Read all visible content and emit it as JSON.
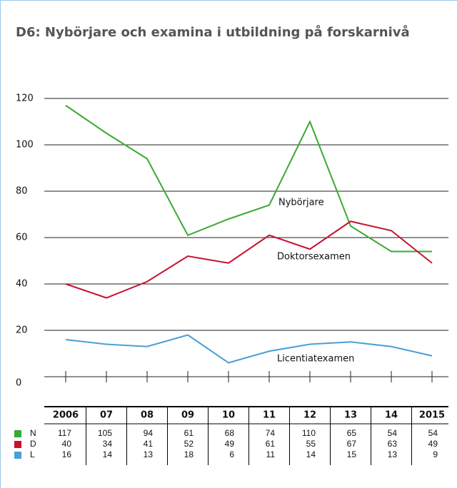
{
  "chart_data": {
    "type": "line",
    "title": "D6: Nybörjare och examina i utbildning på forskarnivå",
    "categories": [
      "2006",
      "07",
      "08",
      "09",
      "10",
      "11",
      "12",
      "13",
      "14",
      "2015"
    ],
    "series": [
      {
        "name": "N",
        "color": "#3aa935",
        "values": [
          117,
          105,
          94,
          61,
          68,
          74,
          110,
          65,
          54,
          54
        ]
      },
      {
        "name": "D",
        "color": "#c8102e",
        "values": [
          40,
          34,
          41,
          52,
          49,
          61,
          55,
          67,
          63,
          49
        ]
      },
      {
        "name": "L",
        "color": "#4a9fd5",
        "values": [
          16,
          14,
          13,
          18,
          6,
          11,
          14,
          15,
          13,
          9
        ]
      }
    ],
    "annotations": [
      "Nybörjare",
      "Doktorsexamen",
      "Licentiatexamen"
    ],
    "ylim": [
      0,
      120
    ],
    "yticks": [
      0,
      20,
      40,
      60,
      80,
      100,
      120
    ],
    "grid": true
  }
}
